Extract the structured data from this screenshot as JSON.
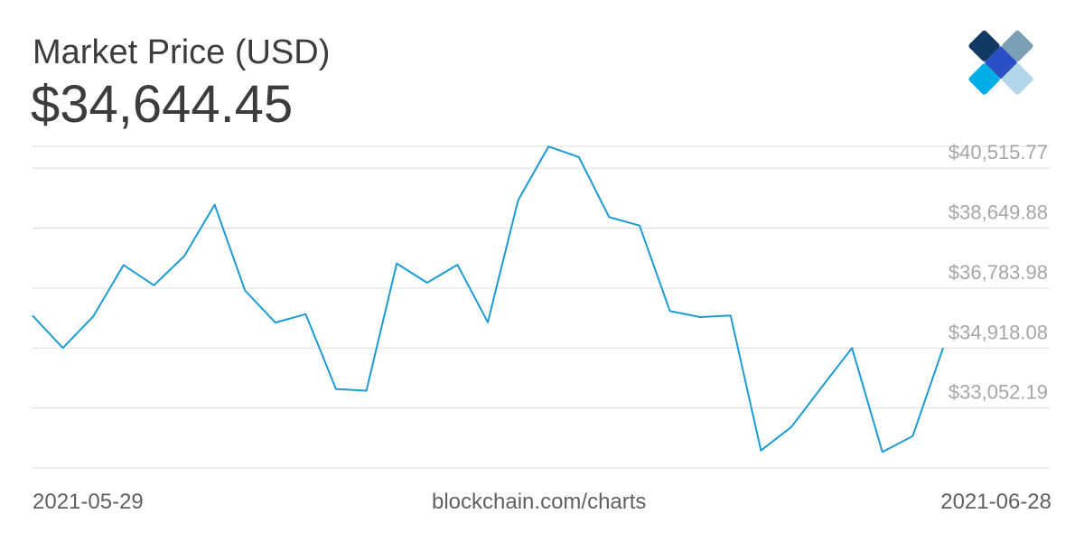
{
  "header": {
    "title": "Market Price (USD)",
    "current_price": "$34,644.45"
  },
  "logo": {
    "icon": "blockchain-diamond-logo",
    "colors": [
      "#7b9fb5",
      "#123962",
      "#2b4fc4",
      "#b3d5ea",
      "#00aee6"
    ]
  },
  "footer": {
    "start_date": "2021-05-29",
    "source": "blockchain.com/charts",
    "end_date": "2021-06-28"
  },
  "chart_data": {
    "type": "line",
    "title": "Market Price (USD)",
    "xlabel": "",
    "ylabel": "",
    "x_range": [
      "2021-05-29",
      "2021-06-28"
    ],
    "ylim": [
      31186.3,
      41195.0
    ],
    "y_ticks": [
      33052.19,
      34918.08,
      36783.98,
      38649.88,
      40515.77
    ],
    "y_tick_labels": [
      "$33,052.19",
      "$34,918.08",
      "$36,783.98",
      "$38,649.88",
      "$40,515.77"
    ],
    "grid": true,
    "line_color": "#1c9bd4",
    "series": [
      {
        "x": [
          "2021-05-29",
          "2021-05-30",
          "2021-05-31",
          "2021-06-01",
          "2021-06-02",
          "2021-06-03",
          "2021-06-04",
          "2021-06-05",
          "2021-06-06",
          "2021-06-07",
          "2021-06-08",
          "2021-06-09",
          "2021-06-10",
          "2021-06-11",
          "2021-06-12",
          "2021-06-13",
          "2021-06-14",
          "2021-06-15",
          "2021-06-16",
          "2021-06-17",
          "2021-06-18",
          "2021-06-19",
          "2021-06-20",
          "2021-06-21",
          "2021-06-22",
          "2021-06-23",
          "2021-06-24",
          "2021-06-25",
          "2021-06-26",
          "2021-06-27",
          "2021-06-28"
        ],
        "values": [
          35930,
          34920,
          35900,
          37500,
          36870,
          37780,
          39380,
          36710,
          35710,
          35970,
          33640,
          33590,
          37550,
          36950,
          37510,
          35720,
          39520,
          41190,
          40860,
          38990,
          38730,
          36070,
          35880,
          35930,
          31730,
          32460,
          33700,
          34920,
          31680,
          32180,
          34920
        ]
      }
    ]
  }
}
